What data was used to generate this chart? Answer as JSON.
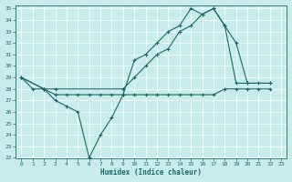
{
  "xlabel": "Humidex (Indice chaleur)",
  "bg_color": "#c8ecec",
  "grid_color": "#b0d8d8",
  "line_color": "#1a6868",
  "xlim": [
    -0.5,
    23.5
  ],
  "ylim": [
    22,
    35.3
  ],
  "yticks": [
    22,
    23,
    24,
    25,
    26,
    27,
    28,
    29,
    30,
    31,
    32,
    33,
    34,
    35
  ],
  "xticks": [
    0,
    1,
    2,
    3,
    4,
    5,
    6,
    7,
    8,
    9,
    10,
    11,
    12,
    13,
    14,
    15,
    16,
    17,
    18,
    19,
    20,
    21,
    22,
    23
  ],
  "line1_x": [
    0,
    1,
    2,
    3,
    4,
    5,
    6,
    7,
    8,
    9,
    10,
    11,
    12,
    13,
    14,
    15,
    16,
    17,
    18,
    19,
    20,
    21,
    22
  ],
  "line1_y": [
    29,
    28,
    28,
    27,
    26.5,
    26,
    22,
    24,
    25.5,
    27.5,
    30.5,
    31,
    32,
    33,
    33.5,
    35,
    34.5,
    35,
    33.5,
    32,
    28.5,
    28.5,
    28.5
  ],
  "line2_x": [
    0,
    2,
    3,
    9,
    10,
    11,
    12,
    13,
    14,
    15,
    16,
    17,
    18,
    19,
    20,
    22
  ],
  "line2_y": [
    29,
    28,
    28,
    28,
    29,
    30,
    31,
    31.5,
    33,
    33.5,
    34.5,
    35,
    33.5,
    28.5,
    28.5,
    28.5
  ],
  "line3_x": [
    0,
    2,
    3,
    4,
    5,
    6,
    7,
    8,
    9,
    10,
    11,
    12,
    13,
    14,
    15,
    16,
    17,
    18,
    19,
    20,
    21,
    22
  ],
  "line3_y": [
    29,
    28,
    27.5,
    27.5,
    27.5,
    27.5,
    27.5,
    27.5,
    27.5,
    27.5,
    27.5,
    27.5,
    27.5,
    27.5,
    27.5,
    27.5,
    27.5,
    28,
    28,
    28,
    28,
    28
  ]
}
